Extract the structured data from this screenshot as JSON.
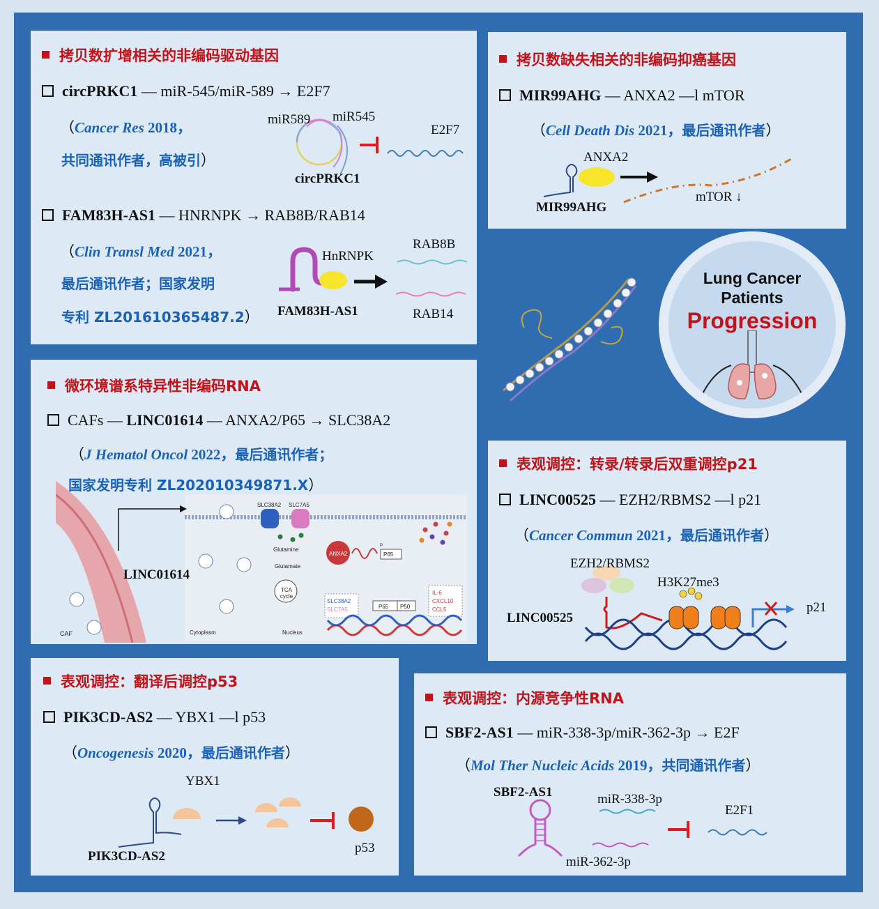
{
  "p1": {
    "title": "拷贝数扩增相关的非编码驱动基因",
    "item1": {
      "gene": "circPRKC1",
      "rest": " — miR-545/miR-589 → E2F7",
      "cite_open": "（",
      "journal": "Cancer Res",
      "year": " 2018，",
      "note": "共同通讯作者，高被引",
      "cite_close": "）"
    },
    "fig1": {
      "l1": "miR589",
      "l2": "miR545",
      "l3": "E2F7",
      "l4": "circPRKC1"
    },
    "item2": {
      "gene": "FAM83H-AS1",
      "rest": " — HNRNPK → RAB8B/RAB14",
      "cite_open": "（",
      "journal": "Clin Transl Med",
      "year": " 2021，",
      "note1": "最后通讯作者；国家发明",
      "note2": "专利 ZL201610365487.2",
      "cite_close": "）"
    },
    "fig2": {
      "l1": "HnRNPK",
      "l2": "RAB8B",
      "l3": "RAB14",
      "l4": "FAM83H-AS1"
    }
  },
  "p2": {
    "title": "拷贝数缺失相关的非编码抑癌基因",
    "item": {
      "gene": "MIR99AHG",
      "rest": " — ANXA2 —l mTOR",
      "cite_open": "（",
      "journal": "Cell Death Dis",
      "year": " 2021，",
      "note": "最后通讯作者",
      "cite_close": "）"
    },
    "fig": {
      "l1": "ANXA2",
      "l2": "MIR99AHG",
      "l3": "mTOR ↓"
    }
  },
  "circle": {
    "line1": "Lung Cancer",
    "line2": "Patients",
    "line3": "Progression"
  },
  "p3": {
    "title": "微环境谱系特异性非编码RNA",
    "item": {
      "pre": "CAFs — ",
      "gene": "LINC01614",
      "rest": " — ANXA2/P65 → SLC38A2",
      "cite_open": "（",
      "journal": "J Hematol Oncol",
      "year": " 2022，",
      "note1": "最后通讯作者；",
      "note2": "国家发明专利 ZL202010349871.X",
      "cite_close": "）"
    },
    "fig": {
      "linc": "LINC01614",
      "caf": "CAF",
      "slc38": "SLC38A2",
      "slc7": "SLC7A5",
      "glutamine": "Glutamine",
      "glutamate": "Glutamate",
      "tca": "TCA cycle",
      "anxa2": "ANXA2",
      "p65": "P65",
      "p50": "P50",
      "cyto": "Cytoplasm",
      "nucleus": "Nucleus",
      "genes1": "SLC38A2",
      "genes2": "SLC7A5",
      "il6": "IL-6",
      "cxcl10": "CXCL10",
      "ccl5": "CCL5",
      "pp": "P"
    }
  },
  "p4": {
    "title": "表观调控：转录/转录后双重调控p21",
    "item": {
      "gene": "LINC00525",
      "rest": " — EZH2/RBMS2 —l p21",
      "cite_open": "（",
      "journal": "Cancer Commun",
      "year": " 2021，",
      "note": "最后通讯作者",
      "cite_close": "）"
    },
    "fig": {
      "l1": "EZH2/RBMS2",
      "l2": "H3K27me3",
      "l3": "p21",
      "l4": "LINC00525"
    }
  },
  "p5": {
    "title": "表观调控：翻译后调控p53",
    "item": {
      "gene": "PIK3CD-AS2",
      "rest": " — YBX1 —l p53",
      "cite_open": "（",
      "journal": "Oncogenesis",
      "year": " 2020，",
      "note": "最后通讯作者",
      "cite_close": "）"
    },
    "fig": {
      "l1": "YBX1",
      "l2": "PIK3CD-AS2",
      "l3": "p53"
    }
  },
  "p6": {
    "title": "表观调控：内源竞争性RNA",
    "item": {
      "gene": "SBF2-AS1",
      "rest": " — miR-338-3p/miR-362-3p → E2F",
      "cite_open": "（",
      "journal": "Mol Ther Nucleic Acids",
      "year": " 2019，",
      "note": "共同通讯作者",
      "cite_close": "）"
    },
    "fig": {
      "l1": "SBF2-AS1",
      "l2": "miR-338-3p",
      "l3": "E2F1",
      "l4": "miR-362-3p"
    }
  },
  "colors": {
    "frame": "#2f6db0",
    "panel": "#dde9f5",
    "title_red": "#c0141a",
    "cite_blue": "#1a62b5"
  }
}
